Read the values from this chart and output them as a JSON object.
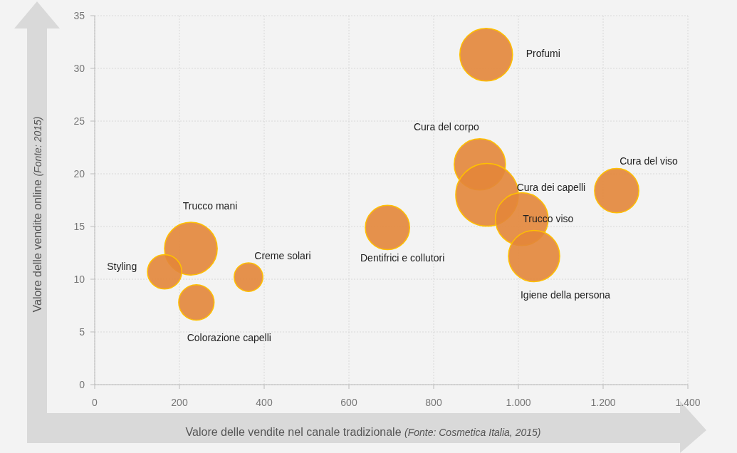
{
  "chart_data": {
    "type": "bubble",
    "xlabel": "Valore delle vendite nel canale tradizionale (Fonte: Cosmetica Italia, 2015)",
    "ylabel": "Valore delle vendite online (Fonte: 2015)",
    "series": [
      {
        "name": "Profumi",
        "color": "#e3863a",
        "x": [
          924
        ],
        "values": [
          31.3
        ],
        "sizes": [
          0.71
        ]
      },
      {
        "name": "Cura del corpo",
        "color": "#e3863a",
        "x": [
          909
        ],
        "values": [
          20.9
        ],
        "sizes": [
          0.67
        ]
      },
      {
        "name": "Cura dei capelli",
        "color": "#e3863a",
        "x": [
          926
        ],
        "values": [
          18.0
        ],
        "sizes": [
          1
        ]
      },
      {
        "name": "Trucco viso",
        "color": "#e3863a",
        "x": [
          1008
        ],
        "values": [
          15.7
        ],
        "sizes": [
          0.71
        ]
      },
      {
        "name": "Igiene della persona",
        "color": "#e3863a",
        "x": [
          1037
        ],
        "values": [
          12.2
        ],
        "sizes": [
          0.67
        ]
      },
      {
        "name": "Cura del viso",
        "color": "#e3863a",
        "x": [
          1232
        ],
        "values": [
          18.4
        ],
        "sizes": [
          0.5
        ]
      },
      {
        "name": "Dentifrici e collutori",
        "color": "#e3863a",
        "x": [
          691
        ],
        "values": [
          14.9
        ],
        "sizes": [
          0.5
        ]
      },
      {
        "name": "Trucco mani",
        "color": "#e3863a",
        "x": [
          227
        ],
        "values": [
          12.9
        ],
        "sizes": [
          0.71
        ]
      },
      {
        "name": "Styling",
        "color": "#e3863a",
        "x": [
          165
        ],
        "values": [
          10.7
        ],
        "sizes": [
          0.3
        ]
      },
      {
        "name": "Creme solari",
        "color": "#e3863a",
        "x": [
          363
        ],
        "values": [
          10.2
        ],
        "sizes": [
          0.21
        ]
      },
      {
        "name": "Colorazione capelli",
        "color": "#e3863a",
        "x": [
          240
        ],
        "values": [
          7.8
        ],
        "sizes": [
          0.32
        ]
      }
    ],
    "xlim": [
      0,
      1400
    ],
    "xticks": [
      0,
      200,
      400,
      600,
      800,
      {
        "value": 1000,
        "label": "1.000"
      },
      {
        "value": 1200,
        "label": "1.200"
      },
      {
        "value": 1400,
        "label": "1.400"
      }
    ],
    "ylim": [
      0,
      35
    ],
    "yticks": [
      0,
      5,
      10,
      15,
      20,
      25,
      30,
      35
    ],
    "grid": true,
    "marker": "circle"
  }
}
